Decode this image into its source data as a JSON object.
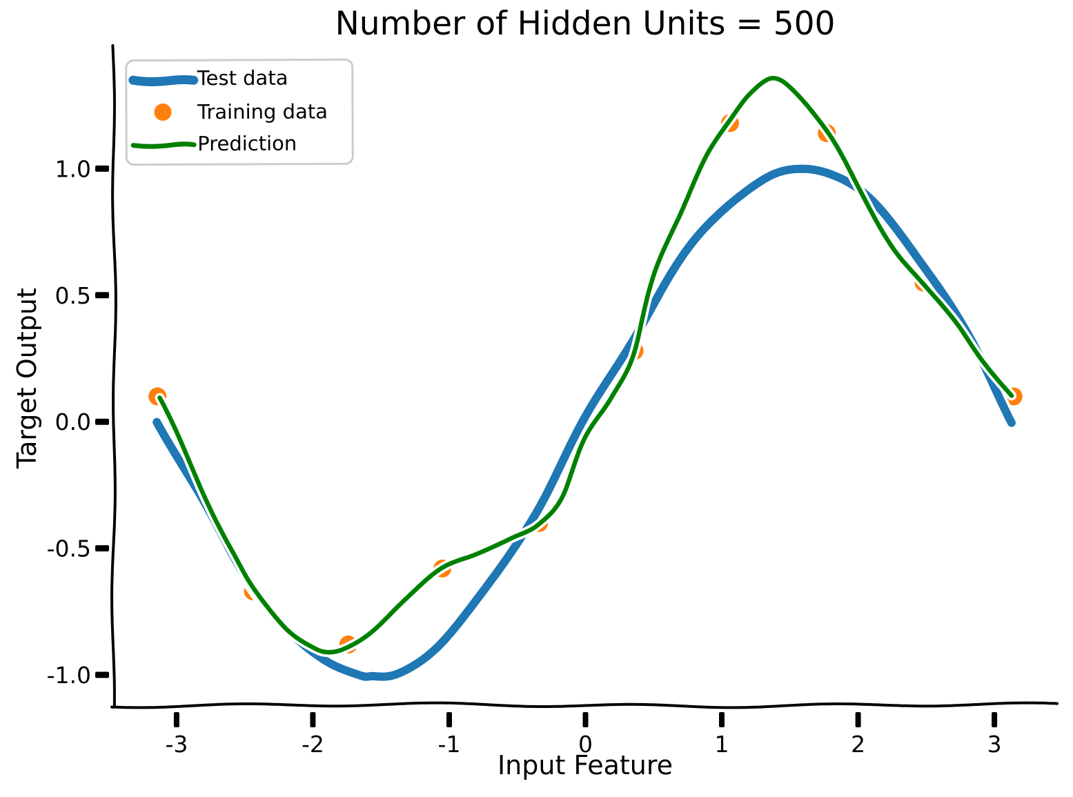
{
  "chart_data": {
    "type": "line",
    "style": "xkcd-sketch",
    "title": "Number of Hidden Units = 500",
    "xlabel": "Input Feature",
    "ylabel": "Target Output",
    "xlim": [
      -3.46,
      3.46
    ],
    "ylim": [
      -1.12,
      1.47
    ],
    "grid": false,
    "x_ticks": [
      -3,
      -2,
      -1,
      0,
      1,
      2,
      3
    ],
    "x_tick_labels": [
      "-3",
      "-2",
      "-1",
      "0",
      "1",
      "2",
      "3"
    ],
    "y_ticks": [
      -1.0,
      -0.5,
      0.0,
      0.5,
      1.0
    ],
    "y_tick_labels": [
      "-1.0",
      "-0.5",
      "0.0",
      "0.5",
      "1.0"
    ],
    "legend": {
      "position": "upper-left",
      "entries": [
        {
          "label": "Test data",
          "type": "line",
          "color": "#1f77b4"
        },
        {
          "label": "Training data",
          "type": "scatter",
          "color": "#ff7f0e"
        },
        {
          "label": "Prediction",
          "type": "line",
          "color": "#008000"
        }
      ]
    },
    "series": [
      {
        "name": "Test data",
        "type": "line",
        "color": "#1f77b4",
        "linewidth": 12,
        "points": [
          [
            -3.14,
            0.0
          ],
          [
            -2.9,
            -0.24
          ],
          [
            -2.65,
            -0.47
          ],
          [
            -2.4,
            -0.67
          ],
          [
            -2.15,
            -0.84
          ],
          [
            -1.9,
            -0.95
          ],
          [
            -1.65,
            -1.0
          ],
          [
            -1.57,
            -1.0
          ],
          [
            -1.4,
            -0.99
          ],
          [
            -1.15,
            -0.91
          ],
          [
            -0.9,
            -0.78
          ],
          [
            -0.65,
            -0.61
          ],
          [
            -0.4,
            -0.39
          ],
          [
            -0.15,
            -0.15
          ],
          [
            0.1,
            0.1
          ],
          [
            0.35,
            0.34
          ],
          [
            0.6,
            0.56
          ],
          [
            0.85,
            0.75
          ],
          [
            1.1,
            0.89
          ],
          [
            1.35,
            0.98
          ],
          [
            1.57,
            1.0
          ],
          [
            1.8,
            0.97
          ],
          [
            2.05,
            0.89
          ],
          [
            2.3,
            0.75
          ],
          [
            2.55,
            0.56
          ],
          [
            2.8,
            0.33
          ],
          [
            3.0,
            0.14
          ],
          [
            3.14,
            0.0
          ]
        ]
      },
      {
        "name": "Training data",
        "type": "scatter",
        "color": "#ff7f0e",
        "marker_radius": 13,
        "points": [
          [
            -3.14,
            0.1
          ],
          [
            -2.44,
            -0.67
          ],
          [
            -1.74,
            -0.88
          ],
          [
            -1.05,
            -0.58
          ],
          [
            -0.34,
            -0.4
          ],
          [
            0.36,
            0.28
          ],
          [
            1.06,
            1.18
          ],
          [
            1.77,
            1.14
          ],
          [
            2.48,
            0.55
          ],
          [
            3.14,
            0.1
          ]
        ]
      },
      {
        "name": "Prediction",
        "type": "line",
        "color": "#008000",
        "linewidth": 6.5,
        "points": [
          [
            -3.14,
            0.09
          ],
          [
            -2.85,
            -0.22
          ],
          [
            -2.6,
            -0.5
          ],
          [
            -2.44,
            -0.66
          ],
          [
            -2.2,
            -0.81
          ],
          [
            -2.0,
            -0.88
          ],
          [
            -1.88,
            -0.9
          ],
          [
            -1.74,
            -0.88
          ],
          [
            -1.55,
            -0.82
          ],
          [
            -1.3,
            -0.7
          ],
          [
            -1.05,
            -0.58
          ],
          [
            -0.8,
            -0.52
          ],
          [
            -0.55,
            -0.46
          ],
          [
            -0.34,
            -0.41
          ],
          [
            -0.15,
            -0.3
          ],
          [
            0.0,
            -0.06
          ],
          [
            0.18,
            0.1
          ],
          [
            0.36,
            0.28
          ],
          [
            0.52,
            0.62
          ],
          [
            0.7,
            0.85
          ],
          [
            0.88,
            1.04
          ],
          [
            1.06,
            1.18
          ],
          [
            1.22,
            1.3
          ],
          [
            1.38,
            1.36
          ],
          [
            1.55,
            1.3
          ],
          [
            1.77,
            1.14
          ],
          [
            2.0,
            0.91
          ],
          [
            2.25,
            0.7
          ],
          [
            2.48,
            0.55
          ],
          [
            2.7,
            0.4
          ],
          [
            2.9,
            0.25
          ],
          [
            3.14,
            0.11
          ]
        ]
      }
    ],
    "colors": {
      "axis": "#000000",
      "halo": "#ffffff",
      "legend_border": "#cccccc",
      "background": "#ffffff"
    }
  }
}
